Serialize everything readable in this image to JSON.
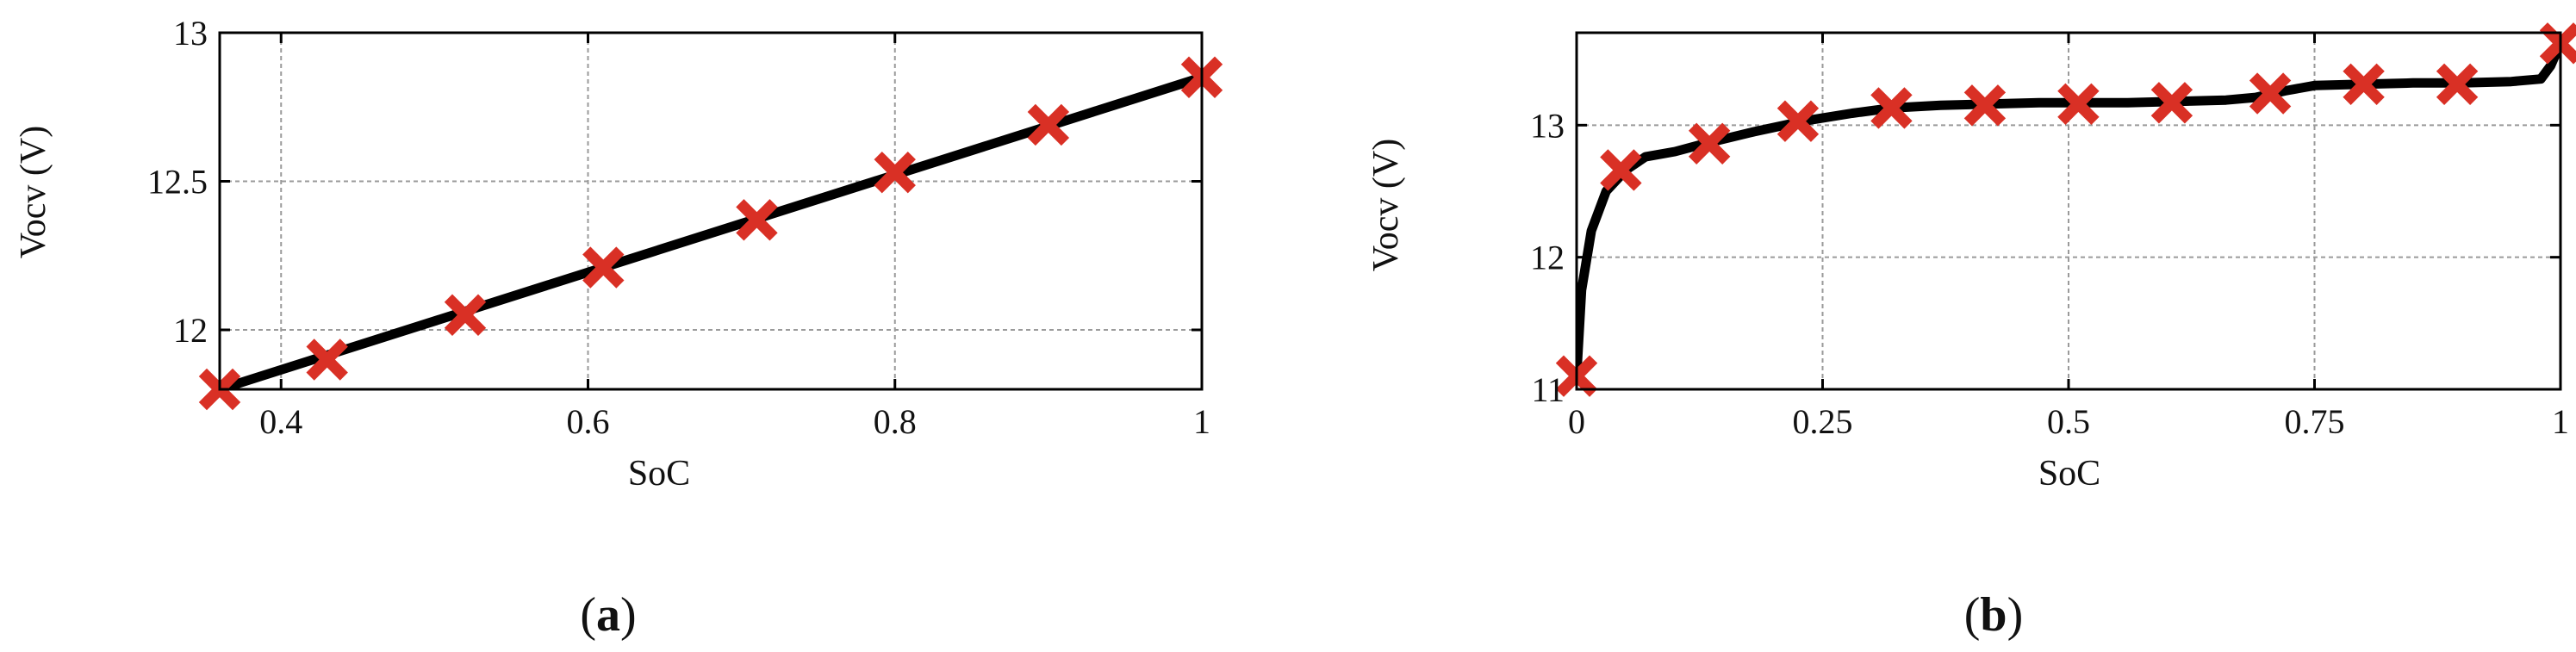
{
  "chart_data": [
    {
      "type": "line",
      "panel_label": "a",
      "xlabel": "SoC",
      "ylabel": "Vocv (V)",
      "xlim": [
        0.36,
        1.0
      ],
      "ylim": [
        11.8,
        13.0
      ],
      "x_ticks": [
        0.4,
        0.6,
        0.8,
        1.0
      ],
      "x_tick_labels": [
        "0.4",
        "0.6",
        "0.8",
        "1"
      ],
      "y_ticks": [
        12.0,
        12.5,
        13.0
      ],
      "y_tick_labels": [
        "12",
        "12.5",
        "13"
      ],
      "grid": true,
      "curve": {
        "x": [
          0.36,
          1.0
        ],
        "y": [
          11.8,
          12.85
        ]
      },
      "markers": {
        "x": [
          0.36,
          0.43,
          0.52,
          0.61,
          0.71,
          0.8,
          0.9,
          1.0
        ],
        "y": [
          11.8,
          11.9,
          12.05,
          12.21,
          12.37,
          12.53,
          12.69,
          12.85
        ]
      },
      "colors": {
        "curve": "#000000",
        "markers": "#d93025",
        "grid": "#9a9a9a"
      }
    },
    {
      "type": "line",
      "panel_label": "b",
      "xlabel": "SoC",
      "ylabel": "Vocv (V)",
      "xlim": [
        0,
        1
      ],
      "ylim": [
        11,
        13.7
      ],
      "x_ticks": [
        0,
        0.25,
        0.5,
        0.75,
        1
      ],
      "x_tick_labels": [
        "0",
        "0.25",
        "0.5",
        "0.75",
        "1"
      ],
      "y_ticks": [
        11,
        12,
        13
      ],
      "y_tick_labels": [
        "11",
        "12",
        "13"
      ],
      "grid": true,
      "curve": {
        "x": [
          0,
          0.005,
          0.015,
          0.03,
          0.05,
          0.07,
          0.1,
          0.13,
          0.18,
          0.23,
          0.28,
          0.32,
          0.37,
          0.42,
          0.47,
          0.51,
          0.56,
          0.61,
          0.66,
          0.69,
          0.72,
          0.75,
          0.8,
          0.85,
          0.9,
          0.95,
          0.98,
          0.99,
          1.0
        ],
        "y": [
          11.1,
          11.75,
          12.2,
          12.5,
          12.66,
          12.76,
          12.8,
          12.86,
          12.95,
          13.03,
          13.09,
          13.13,
          13.15,
          13.16,
          13.17,
          13.17,
          13.17,
          13.18,
          13.19,
          13.21,
          13.26,
          13.3,
          13.31,
          13.32,
          13.32,
          13.33,
          13.35,
          13.45,
          13.62
        ]
      },
      "markers": {
        "x": [
          0,
          0.045,
          0.135,
          0.225,
          0.32,
          0.415,
          0.51,
          0.605,
          0.705,
          0.8,
          0.895,
          1.0
        ],
        "y": [
          11.1,
          12.66,
          12.86,
          13.03,
          13.13,
          13.15,
          13.16,
          13.17,
          13.24,
          13.31,
          13.31,
          13.62
        ]
      },
      "colors": {
        "curve": "#000000",
        "markers": "#d93025",
        "grid": "#9a9a9a"
      }
    }
  ]
}
